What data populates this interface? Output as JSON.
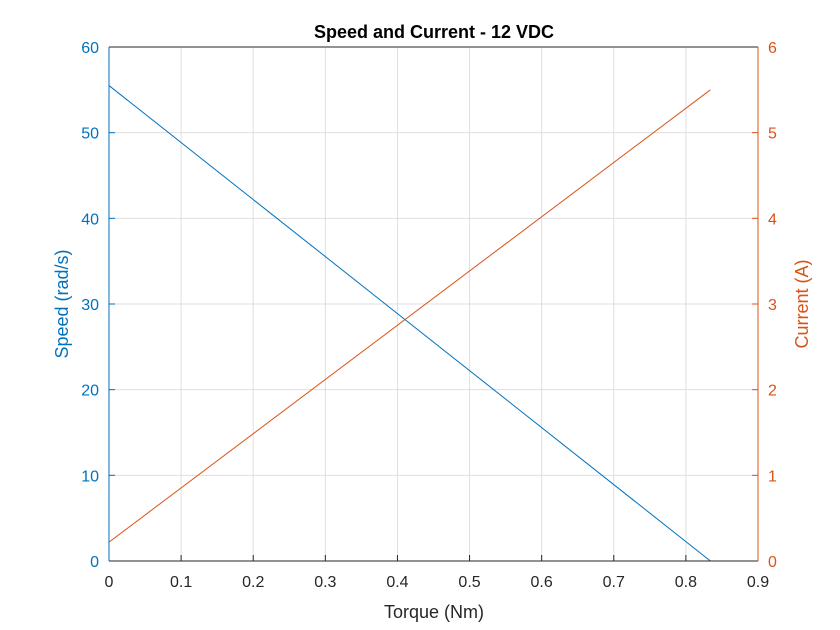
{
  "chart_data": {
    "type": "line",
    "title": "Speed and Current - 12 VDC",
    "xlabel": "Torque (Nm)",
    "ylabel_left": "Speed (rad/s)",
    "ylabel_right": "Current (A)",
    "xlim": [
      0,
      0.9
    ],
    "ylim_left": [
      0,
      60
    ],
    "ylim_right": [
      0,
      6
    ],
    "xticks": [
      "0",
      "0.1",
      "0.2",
      "0.3",
      "0.4",
      "0.5",
      "0.6",
      "0.7",
      "0.8",
      "0.9"
    ],
    "yticks_left": [
      "0",
      "10",
      "20",
      "30",
      "40",
      "50",
      "60"
    ],
    "yticks_right": [
      "0",
      "1",
      "2",
      "3",
      "4",
      "5",
      "6"
    ],
    "grid": true,
    "colors": {
      "left": "#0072BD",
      "right": "#D95319"
    },
    "series": [
      {
        "axis": "left",
        "color": "#0072BD",
        "x": [
          0,
          0.834
        ],
        "y": [
          55.5,
          0
        ]
      },
      {
        "axis": "right",
        "color": "#D95319",
        "x": [
          0,
          0.834
        ],
        "y": [
          0.22,
          5.5
        ]
      }
    ]
  }
}
